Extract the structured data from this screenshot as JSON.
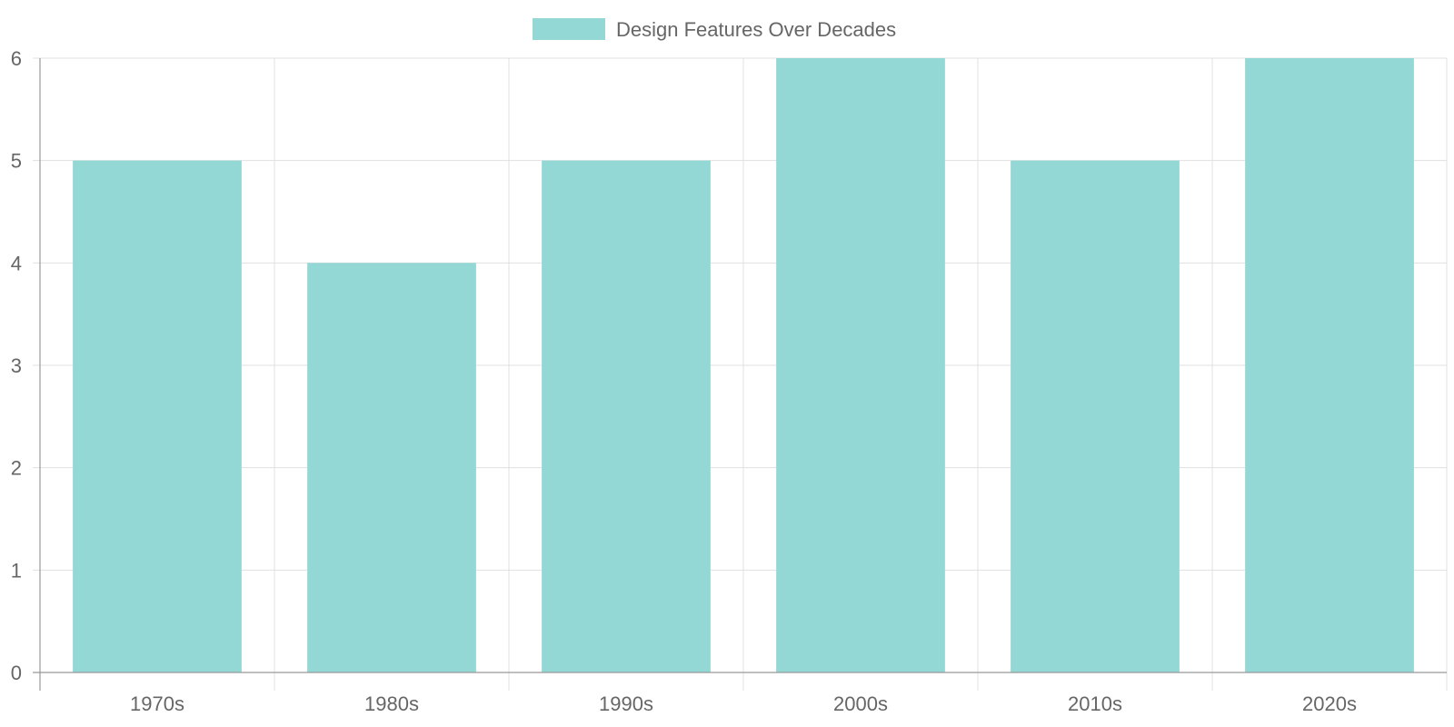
{
  "chart_data": {
    "type": "bar",
    "categories": [
      "1970s",
      "1980s",
      "1990s",
      "2000s",
      "2010s",
      "2020s"
    ],
    "series": [
      {
        "name": "Design Features Over Decades",
        "values": [
          5,
          4,
          5,
          6,
          5,
          6
        ],
        "color": "#94d8d6"
      }
    ],
    "ylim": [
      0,
      6
    ],
    "yticks": [
      "0",
      "1",
      "2",
      "3",
      "4",
      "5",
      "6"
    ],
    "grid": true,
    "legend": "top-center",
    "colors": {
      "bar": "#94d8d6",
      "grid": "#e0e0e0",
      "axis": "#999999",
      "text": "#666666"
    }
  }
}
